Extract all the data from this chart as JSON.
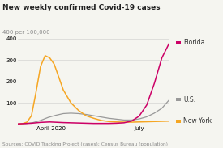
{
  "title": "New weekly confirmed Covid-19 cases",
  "ylabel": "400 per 100,000",
  "source": "Sources: COVID Tracking Project (cases); Census Bureau (population)",
  "xlim": [
    0,
    100
  ],
  "ylim": [
    0,
    400
  ],
  "yticks": [
    100,
    200,
    300,
    400
  ],
  "xtick_labels": [
    "April 2020",
    "July"
  ],
  "xtick_positions": [
    22,
    80
  ],
  "florida": {
    "color": "#cc0066",
    "label": "Florida",
    "x": [
      0,
      3,
      6,
      9,
      12,
      15,
      18,
      21,
      24,
      27,
      30,
      35,
      40,
      45,
      50,
      55,
      60,
      65,
      70,
      75,
      80,
      85,
      90,
      95,
      100
    ],
    "y": [
      2,
      3,
      4,
      5,
      7,
      9,
      10,
      11,
      10,
      9,
      8,
      7,
      6,
      5,
      4,
      4,
      4,
      5,
      7,
      15,
      38,
      90,
      190,
      310,
      380
    ]
  },
  "us": {
    "color": "#999999",
    "label": "U.S.",
    "x": [
      0,
      5,
      10,
      15,
      20,
      25,
      30,
      35,
      40,
      45,
      50,
      55,
      60,
      65,
      70,
      75,
      80,
      85,
      90,
      95,
      100
    ],
    "y": [
      1,
      3,
      8,
      18,
      32,
      42,
      50,
      52,
      50,
      46,
      40,
      34,
      28,
      24,
      20,
      20,
      25,
      35,
      52,
      75,
      115
    ]
  },
  "newyork": {
    "color": "#f5a623",
    "label": "New York",
    "x": [
      0,
      3,
      6,
      9,
      12,
      15,
      18,
      21,
      24,
      27,
      30,
      35,
      40,
      45,
      50,
      55,
      60,
      65,
      70,
      75,
      80,
      85,
      90,
      95,
      100
    ],
    "y": [
      1,
      3,
      10,
      40,
      150,
      270,
      320,
      310,
      280,
      220,
      160,
      100,
      65,
      40,
      28,
      18,
      13,
      11,
      10,
      10,
      11,
      12,
      13,
      14,
      15
    ]
  },
  "bg_color": "#f5f5f0",
  "title_fontsize": 6.5,
  "label_fontsize": 5,
  "tick_fontsize": 5,
  "source_fontsize": 4.2,
  "legend_fontsize": 5.5
}
